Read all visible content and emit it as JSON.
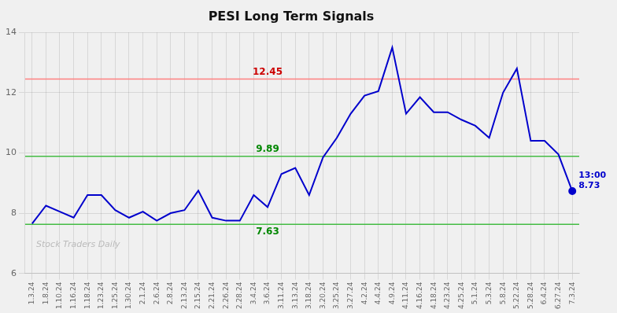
{
  "chart_data": {
    "type": "line",
    "title": "PESI Long Term Signals",
    "categories": [
      "1.3.24",
      "1.8.24",
      "1.10.24",
      "1.16.24",
      "1.18.24",
      "1.23.24",
      "1.25.24",
      "1.30.24",
      "2.1.24",
      "2.6.24",
      "2.8.24",
      "2.13.24",
      "2.15.24",
      "2.21.24",
      "2.26.24",
      "2.28.24",
      "3.4.24",
      "3.6.24",
      "3.11.24",
      "3.13.24",
      "3.18.24",
      "3.20.24",
      "3.25.24",
      "3.27.24",
      "4.2.24",
      "4.4.24",
      "4.9.24",
      "4.11.24",
      "4.16.24",
      "4.18.24",
      "4.23.24",
      "4.25.24",
      "5.1.24",
      "5.3.24",
      "5.8.24",
      "5.22.24",
      "5.28.24",
      "6.4.24",
      "6.27.24",
      "7.3.24"
    ],
    "values": [
      7.65,
      8.25,
      8.05,
      7.85,
      8.6,
      8.6,
      8.1,
      7.85,
      8.05,
      7.75,
      8.0,
      8.1,
      8.75,
      7.85,
      7.75,
      7.75,
      8.6,
      8.2,
      9.3,
      9.5,
      8.6,
      9.85,
      10.5,
      11.3,
      11.9,
      12.05,
      13.5,
      11.3,
      11.85,
      11.35,
      11.35,
      11.1,
      10.9,
      10.5,
      12.0,
      12.8,
      10.4,
      10.4,
      9.95,
      8.73
    ],
    "color": "#0000cc",
    "ylim": [
      6,
      14
    ],
    "yticks": [
      6,
      8,
      10,
      12,
      14
    ],
    "grid": true,
    "background_color": "#f0f0f0",
    "reference_lines": [
      {
        "value": 12.45,
        "color": "#ff8080",
        "label": "12.45",
        "label_color": "#cc0000"
      },
      {
        "value": 9.89,
        "color": "#44bb44",
        "label": "9.89",
        "label_color": "#008800"
      },
      {
        "value": 7.63,
        "color": "#44bb44",
        "label": "7.63",
        "label_color": "#008800"
      }
    ],
    "annotations": [
      {
        "text": "13:00",
        "color": "#0000cc"
      },
      {
        "text": "8.73",
        "color": "#0000cc"
      }
    ],
    "watermark": {
      "text": "Stock Traders Daily",
      "color": "#bbbbbb"
    }
  }
}
